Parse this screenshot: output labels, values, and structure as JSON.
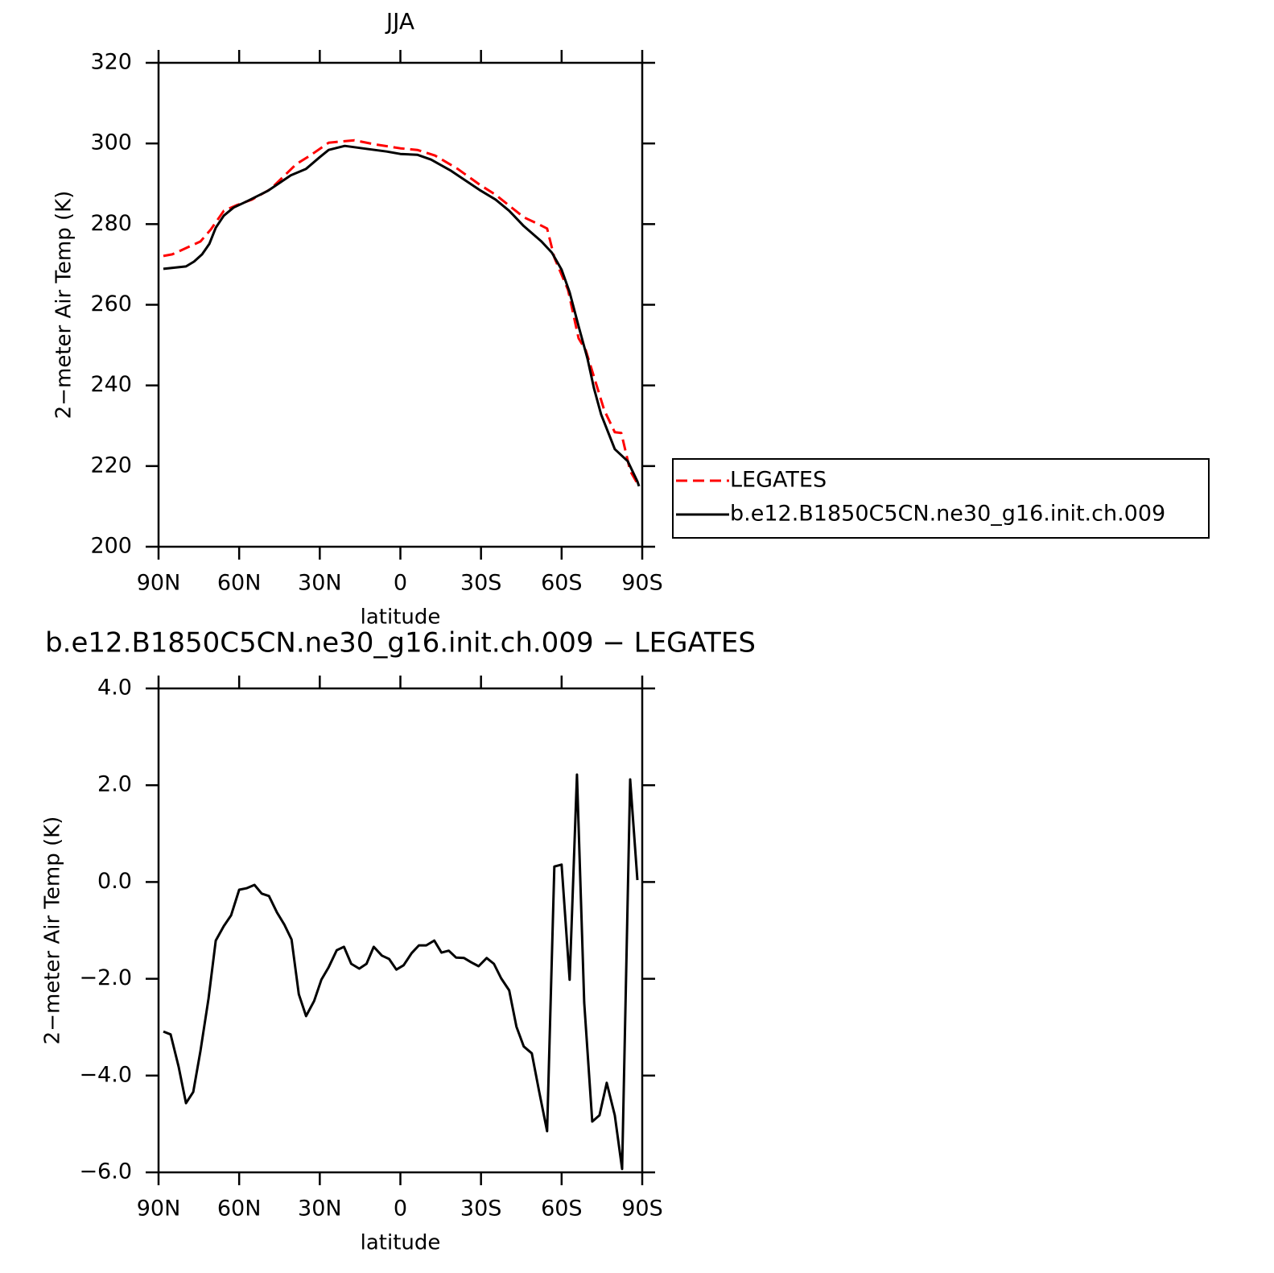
{
  "chart_data": [
    {
      "type": "line",
      "title": "JJA",
      "xlabel": "latitude",
      "ylabel": "2−meter Air Temp (K)",
      "xlim": [
        90,
        -90
      ],
      "ylim": [
        200,
        320
      ],
      "xticks": [
        {
          "value": 90,
          "label": "90N"
        },
        {
          "value": 60,
          "label": "60N"
        },
        {
          "value": 30,
          "label": "30N"
        },
        0,
        {
          "value": -30,
          "label": "30S"
        },
        {
          "value": -60,
          "label": "60S"
        },
        {
          "value": -90,
          "label": "90S"
        }
      ],
      "yticks": [
        200,
        220,
        240,
        260,
        280,
        300,
        320
      ],
      "legend": "outside right",
      "series": [
        {
          "name": "LEGATES",
          "color": "#ff0000",
          "dash": true,
          "x": [
            88.2,
            84.9,
            74.4,
            70.5,
            65.7,
            60.9,
            55.2,
            48.3,
            38.7,
            33.6,
            26.7,
            17.1,
            9.6,
            0,
            -6.3,
            -12.9,
            -21.3,
            -29.7,
            -35.4,
            -45.9,
            -50.4,
            -54.6,
            -57.3,
            -62.4,
            -66.3,
            -69,
            -75.9,
            -79.8,
            -82.2,
            -85.5,
            -88.8
          ],
          "values": [
            272.1,
            272.5,
            275.7,
            278.7,
            283.3,
            284.7,
            286.1,
            288.7,
            294.9,
            297.0,
            300.2,
            300.8,
            299.8,
            298.8,
            298.4,
            297.0,
            293.7,
            289.7,
            287.3,
            281.7,
            280.3,
            278.9,
            271.7,
            263.7,
            251.7,
            248.7,
            233.8,
            228.4,
            228.2,
            218.8,
            215.0
          ]
        },
        {
          "name": "b.e12.B1850C5CN.ne30_g16.init.ch.009",
          "color": "#000000",
          "dash": false,
          "x": [
            88.2,
            79.8,
            76.8,
            73.8,
            71.1,
            68.7,
            65.7,
            62.1,
            57.0,
            49.2,
            40.8,
            35.1,
            30.0,
            26.7,
            20.7,
            14.1,
            5.1,
            0,
            -6.3,
            -11.4,
            -18.9,
            -29.4,
            -35.4,
            -40.5,
            -45.9,
            -52.5,
            -56.4,
            -60,
            -63,
            -66.3,
            -69.6,
            -72,
            -74.7,
            -79.8,
            -84.6,
            -88.2,
            -88.8
          ],
          "values": [
            268.9,
            269.5,
            270.7,
            272.5,
            275.1,
            279.1,
            282.1,
            284.1,
            285.7,
            288.3,
            292.1,
            293.7,
            296.6,
            298.4,
            299.4,
            298.8,
            298.0,
            297.4,
            297.2,
            296.0,
            293.2,
            288.5,
            286.1,
            283.3,
            279.5,
            275.7,
            272.9,
            268.7,
            263.1,
            254.7,
            246.7,
            239.4,
            232.8,
            224.2,
            221.2,
            216.2,
            215.0
          ]
        }
      ]
    },
    {
      "type": "line",
      "title": "b.e12.B1850C5CN.ne30_g16.init.ch.009 − LEGATES",
      "xlabel": "latitude",
      "ylabel": "2−meter Air Temp (K)",
      "xlim": [
        90,
        -90
      ],
      "ylim": [
        -6,
        4
      ],
      "xticks": [
        {
          "value": 90,
          "label": "90N"
        },
        {
          "value": 60,
          "label": "60N"
        },
        {
          "value": 30,
          "label": "30N"
        },
        0,
        {
          "value": -30,
          "label": "30S"
        },
        {
          "value": -60,
          "label": "60S"
        },
        {
          "value": -90,
          "label": "90S"
        }
      ],
      "yticks": [
        {
          "value": -6,
          "label": "−6.0"
        },
        {
          "value": -4,
          "label": "−4.0"
        },
        {
          "value": -2,
          "label": "−2.0"
        },
        {
          "value": 0,
          "label": "0.0"
        },
        {
          "value": 2,
          "label": "2.0"
        },
        {
          "value": 4,
          "label": "4.0"
        }
      ],
      "series": [
        {
          "color": "#000000",
          "dash": false,
          "x": [
            88.2,
            85.5,
            82.5,
            79.8,
            77.1,
            74.4,
            71.4,
            68.7,
            65.7,
            63.0,
            60.0,
            57.3,
            54.3,
            51.6,
            48.9,
            45.9,
            43.2,
            40.5,
            37.8,
            35.1,
            32.1,
            29.4,
            26.7,
            23.7,
            21.0,
            18.3,
            15.3,
            12.6,
            9.9,
            6.9,
            4.2,
            1.5,
            -1.2,
            -4.2,
            -6.9,
            -9.6,
            -12.6,
            -15.3,
            -18.0,
            -20.7,
            -23.7,
            -26.4,
            -29.1,
            -32.1,
            -34.8,
            -37.5,
            -40.5,
            -43.2,
            -45.9,
            -48.9,
            -51.6,
            -54.6,
            -57.3,
            -60.0,
            -63.0,
            -65.7,
            -68.4,
            -71.4,
            -74.1,
            -76.8,
            -79.8,
            -82.5,
            -85.5,
            -88.2
          ],
          "values": [
            -3.09,
            -3.15,
            -3.82,
            -4.57,
            -4.34,
            -3.49,
            -2.41,
            -1.21,
            -0.91,
            -0.69,
            -0.16,
            -0.13,
            -0.06,
            -0.24,
            -0.29,
            -0.63,
            -0.88,
            -1.19,
            -2.32,
            -2.77,
            -2.46,
            -2.02,
            -1.76,
            -1.41,
            -1.34,
            -1.69,
            -1.79,
            -1.69,
            -1.34,
            -1.52,
            -1.59,
            -1.81,
            -1.72,
            -1.47,
            -1.31,
            -1.31,
            -1.21,
            -1.46,
            -1.42,
            -1.56,
            -1.57,
            -1.66,
            -1.74,
            -1.57,
            -1.69,
            -1.99,
            -2.24,
            -2.99,
            -3.4,
            -3.54,
            -4.32,
            -5.15,
            0.32,
            0.36,
            -2.02,
            2.22,
            -2.49,
            -4.95,
            -4.82,
            -4.15,
            -4.82,
            -5.93,
            2.12,
            0.04
          ]
        }
      ]
    }
  ]
}
